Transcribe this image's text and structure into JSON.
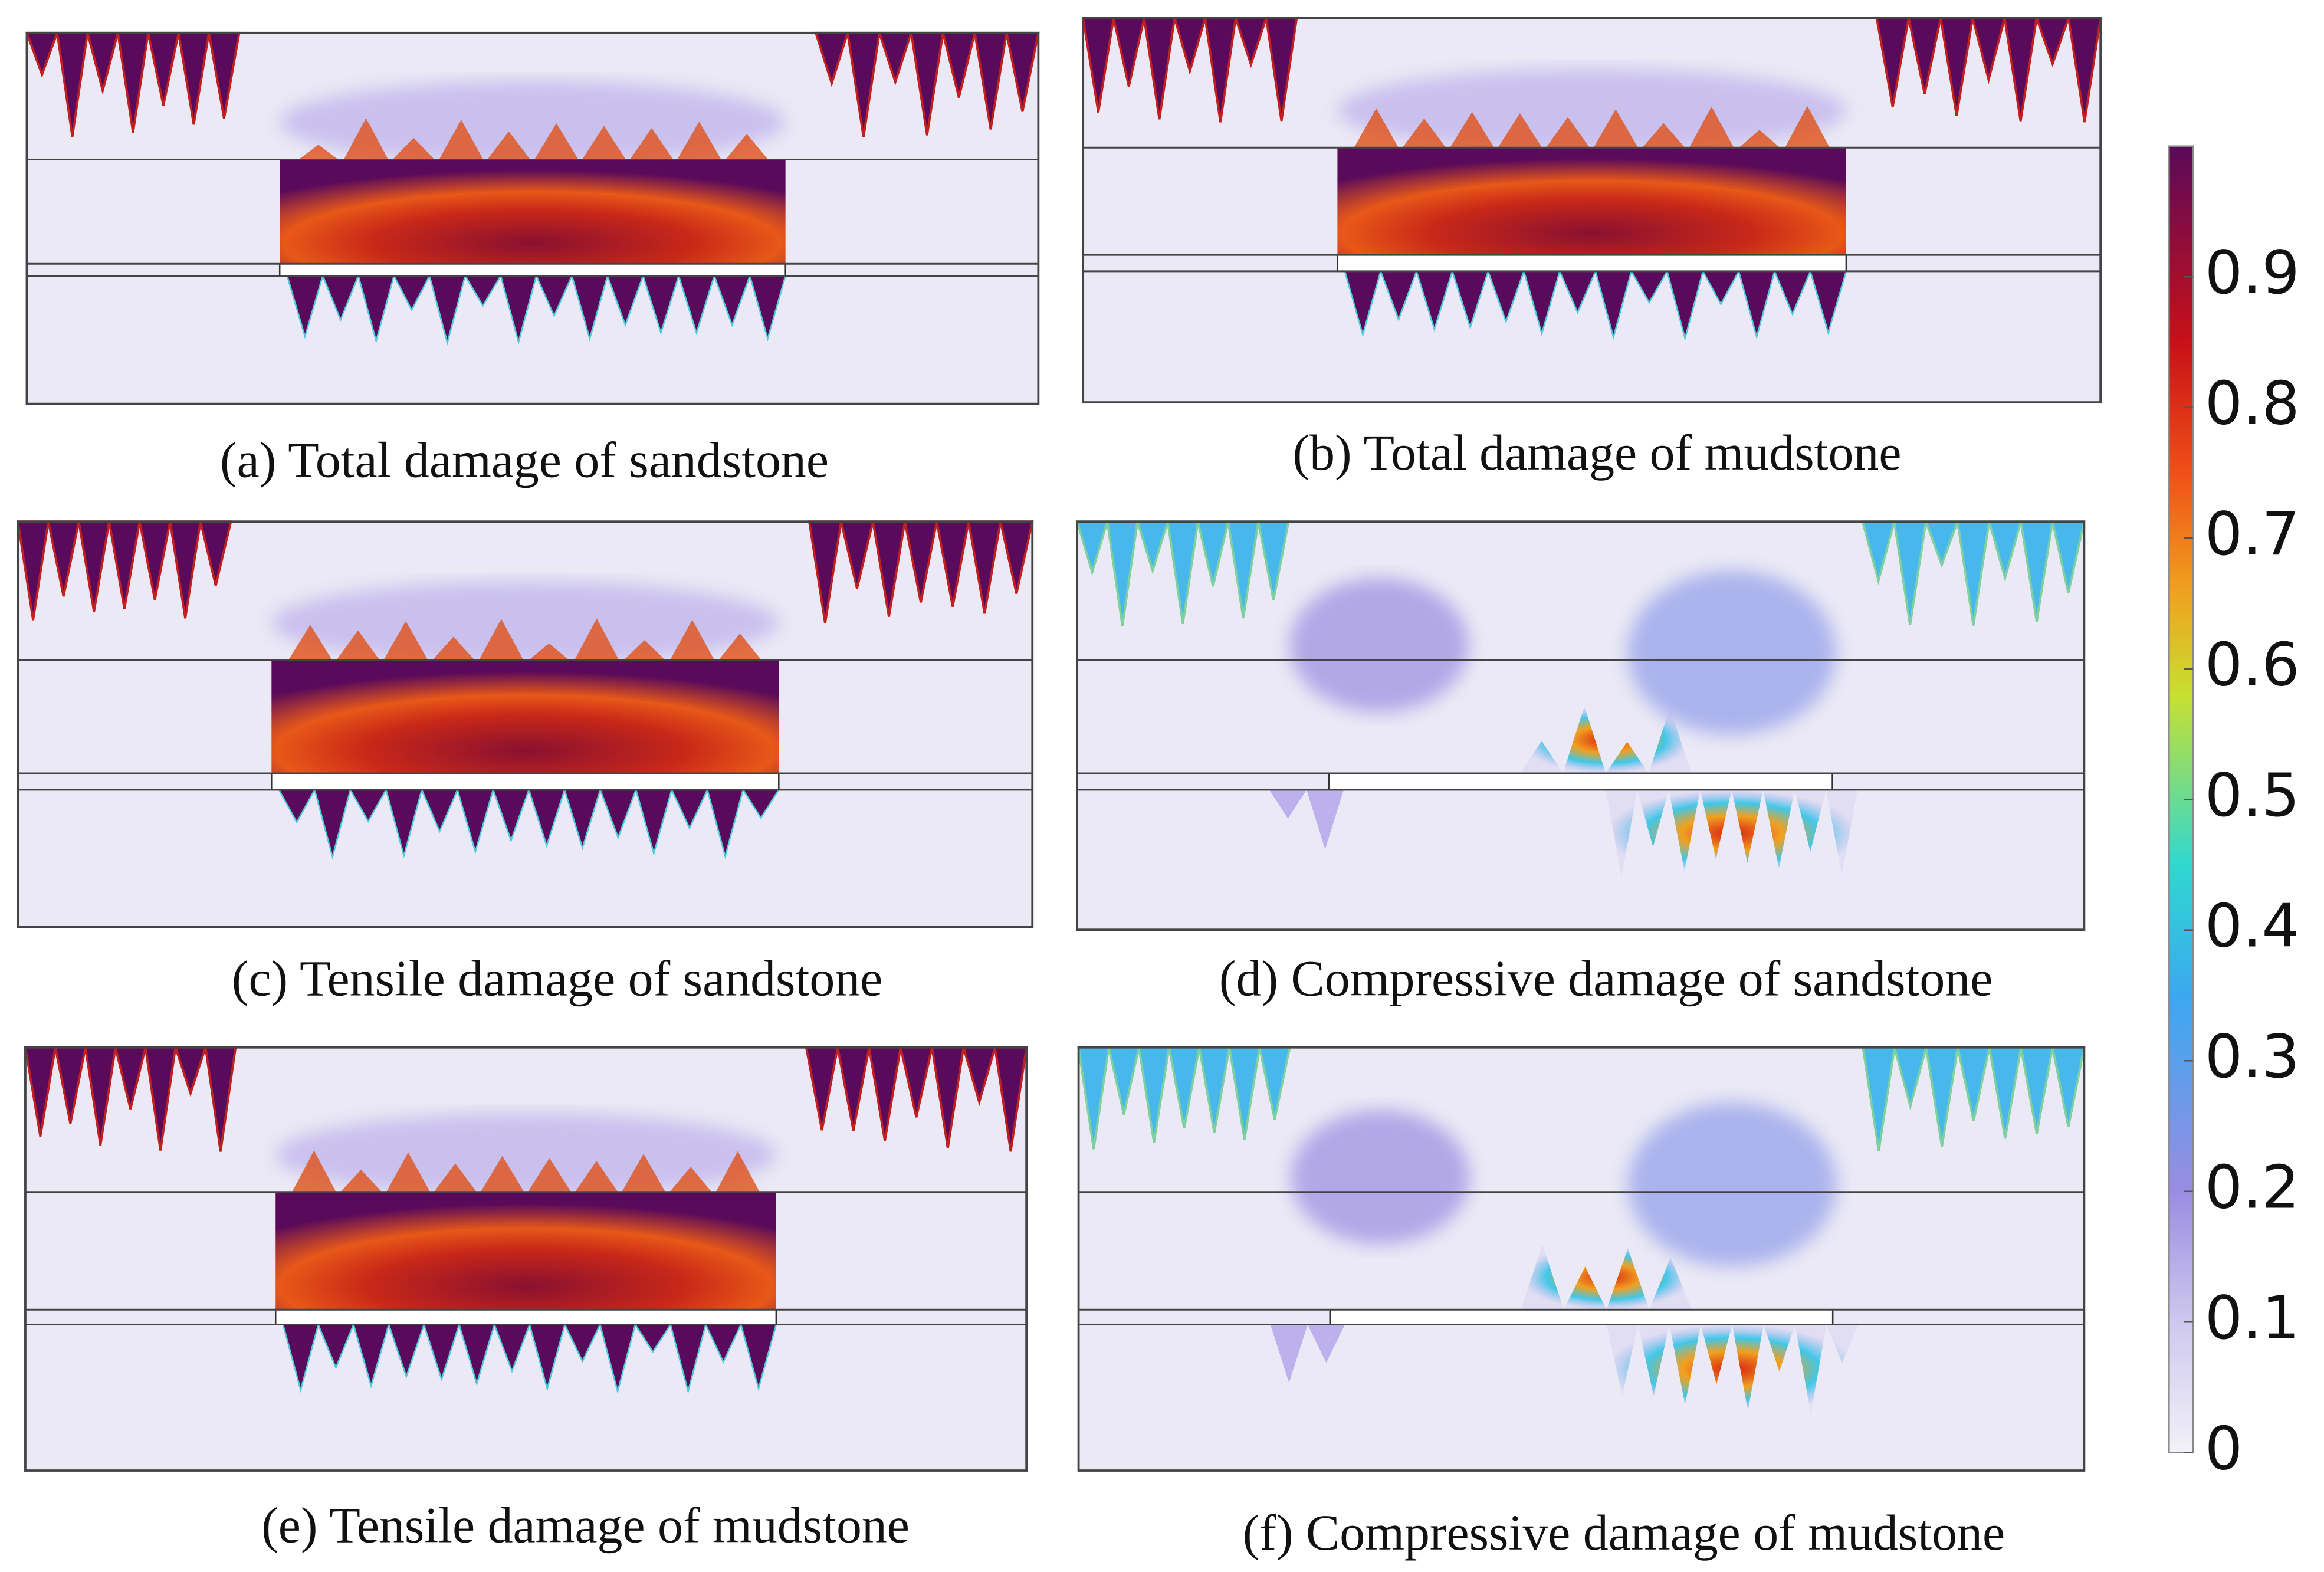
{
  "panels": [
    {
      "caption": "(a) Total damage of sandstone"
    },
    {
      "caption": "(b) Total damage of mudstone"
    },
    {
      "caption": "(c) Tensile damage of sandstone"
    },
    {
      "caption": "(d) Compressive damage of sandstone"
    },
    {
      "caption": "(e) Tensile damage of mudstone"
    },
    {
      "caption": "(f) Compressive damage of mudstone"
    }
  ],
  "colorbar": {
    "lim": [
      0,
      1
    ],
    "ticks": [
      0,
      0.1,
      0.2,
      0.3,
      0.4,
      0.5,
      0.6,
      0.7,
      0.8,
      0.9
    ]
  }
}
